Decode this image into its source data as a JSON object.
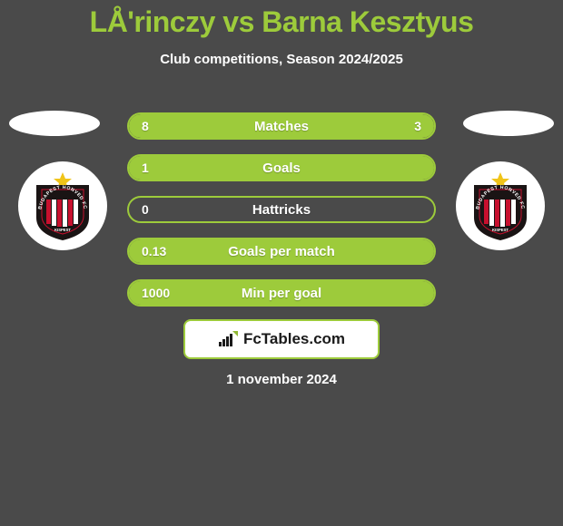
{
  "title": "LÅ'rinczy vs Barna Kesztyus",
  "subtitle": "Club competitions, Season 2024/2025",
  "colors": {
    "background": "#4a4a4a",
    "accent": "#9dcb3b",
    "text": "#ffffff",
    "box_bg": "#ffffff",
    "brand_text": "#1a1a1a"
  },
  "badge": {
    "shield_fill": "#1a1414",
    "stripe_red": "#c8102e",
    "stripe_white": "#ffffff",
    "ring_text": "BUDAPEST HONVED FC",
    "ring_bottom": "KISPEST",
    "star": "#f0c419"
  },
  "rows": [
    {
      "label": "Matches",
      "left": "8",
      "right": "3",
      "left_fill_pct": 72.7,
      "right_fill_pct": 27.3
    },
    {
      "label": "Goals",
      "left": "1",
      "right": "",
      "left_fill_pct": 100,
      "right_fill_pct": 0
    },
    {
      "label": "Hattricks",
      "left": "0",
      "right": "",
      "left_fill_pct": 0,
      "right_fill_pct": 0
    },
    {
      "label": "Goals per match",
      "left": "0.13",
      "right": "",
      "left_fill_pct": 100,
      "right_fill_pct": 0
    },
    {
      "label": "Min per goal",
      "left": "1000",
      "right": "",
      "left_fill_pct": 100,
      "right_fill_pct": 0
    }
  ],
  "footer": {
    "brand": "FcTables.com"
  },
  "date": "1 november 2024"
}
